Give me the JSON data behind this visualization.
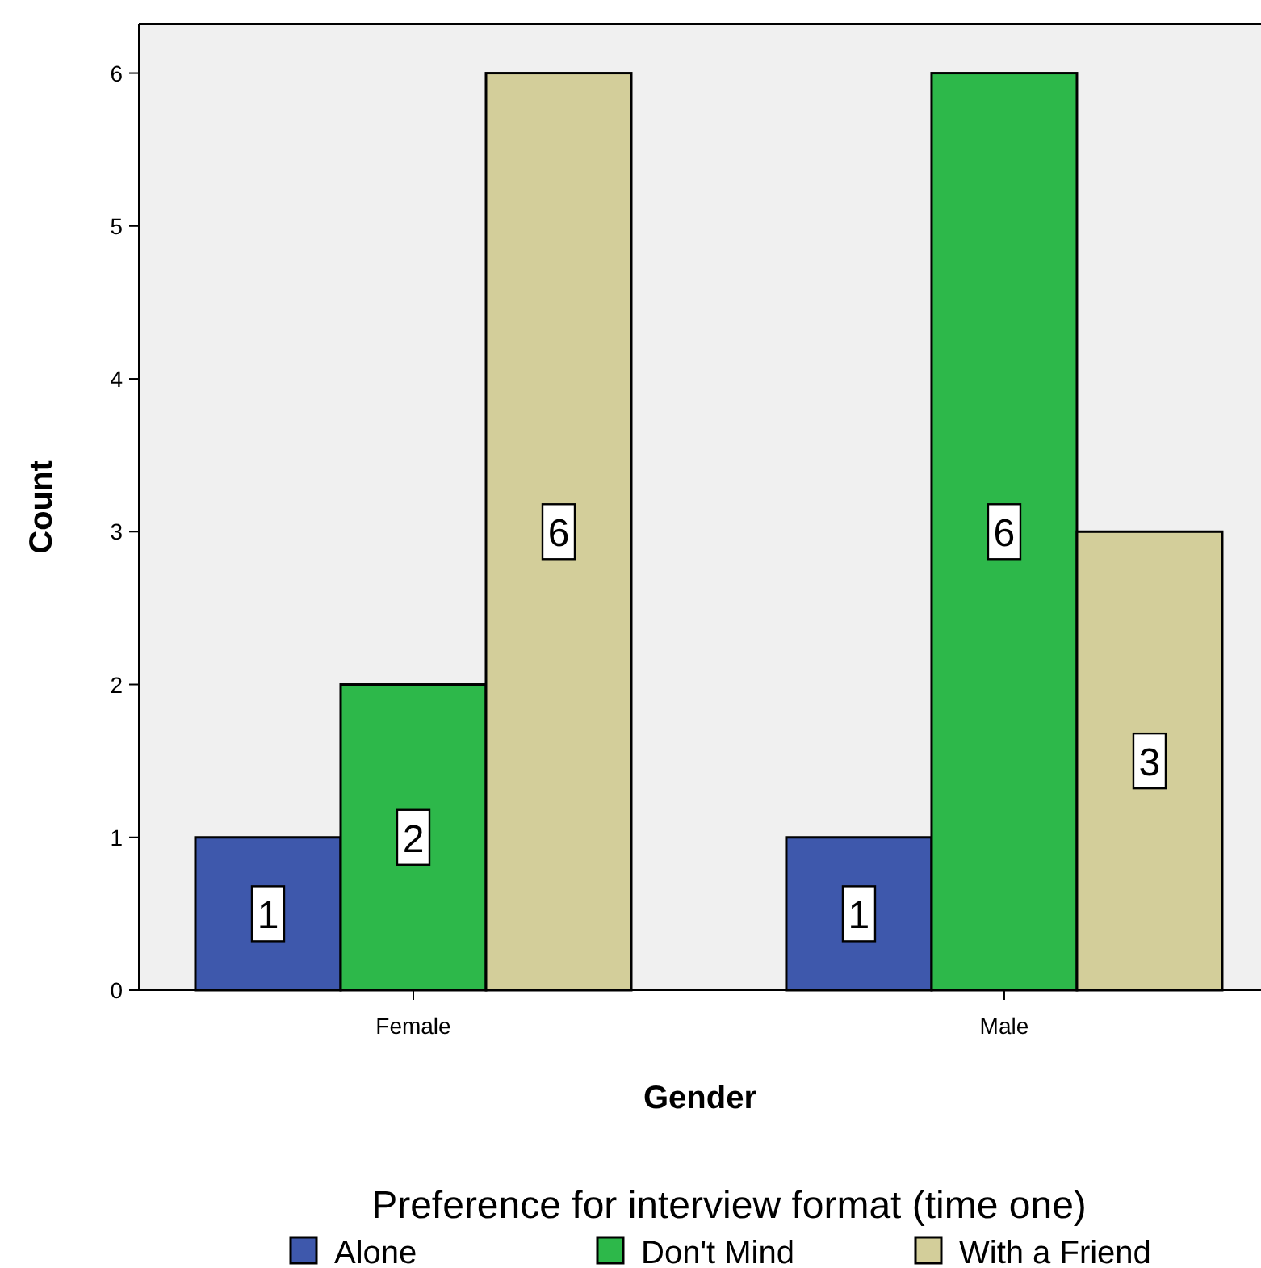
{
  "chart_data": {
    "type": "bar",
    "xlabel": "Gender",
    "ylabel": "Count",
    "legend_title": "Preference for interview format (time one)",
    "categories": [
      "Female",
      "Male"
    ],
    "series": [
      {
        "name": "Alone",
        "color": "#3e58ac",
        "values": [
          1,
          1
        ]
      },
      {
        "name": "Don't Mind",
        "color": "#2db84a",
        "values": [
          2,
          6
        ]
      },
      {
        "name": "With a Friend",
        "color": "#d3ce9a",
        "values": [
          6,
          3
        ]
      }
    ],
    "ylim": [
      0,
      6.32
    ],
    "yticks": [
      0,
      1,
      2,
      3,
      4,
      5,
      6
    ],
    "grid": false,
    "legend": "bottom",
    "data_labels": true
  }
}
